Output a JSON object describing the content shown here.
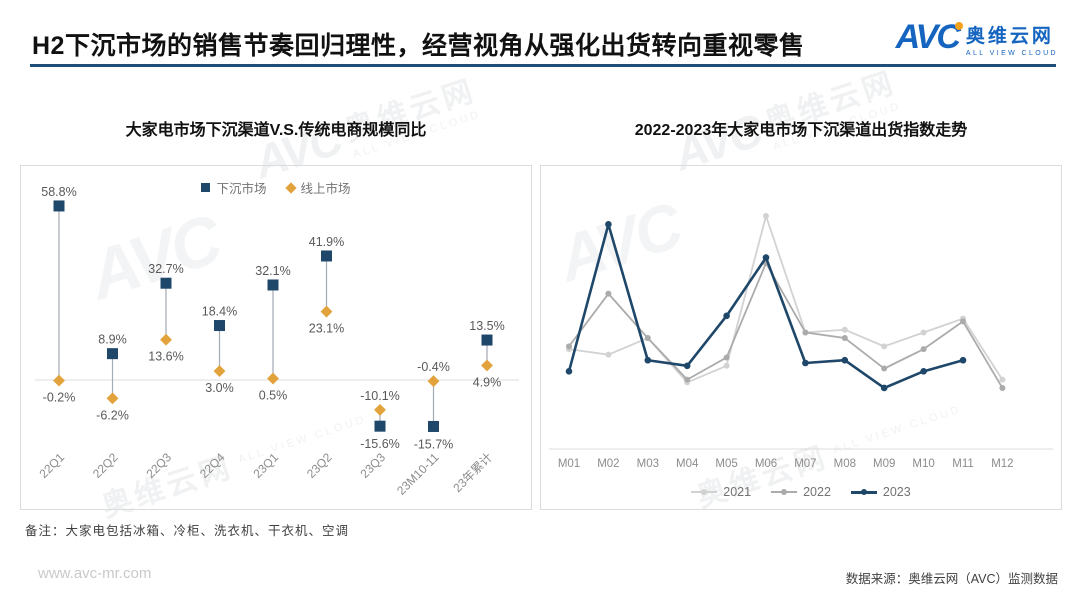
{
  "header": {
    "title": "H2下沉市场的销售节奏回归理性，经营视角从强化出货转向重视零售",
    "logo": {
      "text": "AVC",
      "name_cn": "奥维云网",
      "name_en": "ALL VIEW CLOUD"
    }
  },
  "watermark": {
    "avc": "AVC",
    "cn": "奥维云网",
    "en": "ALL VIEW CLOUD"
  },
  "chart_data": [
    {
      "type": "scatter",
      "subtype": "lollipop-stem",
      "title": "大家电市场下沉渠道V.S.传统电商规模同比",
      "unit": "%",
      "categories": [
        "22Q1",
        "22Q2",
        "22Q3",
        "22Q4",
        "23Q1",
        "23Q2",
        "23Q3",
        "23M10-11",
        "23年累计"
      ],
      "series": [
        {
          "name": "下沉市场",
          "marker": "square",
          "color": "#1f4769",
          "values": [
            58.8,
            8.9,
            32.7,
            18.4,
            32.1,
            41.9,
            -15.6,
            -15.7,
            13.5
          ]
        },
        {
          "name": "线上市场",
          "marker": "diamond",
          "color": "#e2a23c",
          "values": [
            -0.2,
            -6.2,
            13.6,
            3.0,
            0.5,
            23.1,
            -10.1,
            -0.4,
            4.9
          ]
        }
      ],
      "axis": {
        "y_ticks_visible": false,
        "zero_line": true,
        "ylim": [
          -25,
          70
        ]
      },
      "legend_position": "top-center"
    },
    {
      "type": "line",
      "title": "2022-2023年大家电市场下沉渠道出货指数走势",
      "x": [
        "M01",
        "M02",
        "M03",
        "M04",
        "M05",
        "M06",
        "M07",
        "M08",
        "M09",
        "M10",
        "M11",
        "M12"
      ],
      "series": [
        {
          "name": "2021",
          "color": "#d2d2d2",
          "values": [
            36,
            34,
            40,
            24,
            30,
            84,
            42,
            43,
            37,
            42,
            47,
            25
          ]
        },
        {
          "name": "2022",
          "color": "#ababab",
          "values": [
            37,
            56,
            40,
            25,
            33,
            67,
            42,
            40,
            29,
            36,
            46,
            22
          ]
        },
        {
          "name": "2023",
          "color": "#1f4769",
          "values": [
            28,
            81,
            32,
            30,
            48,
            69,
            31,
            32,
            22,
            28,
            32,
            null
          ]
        }
      ],
      "axis": {
        "y_ticks_visible": false,
        "values_are_estimated_index": true,
        "ylim": [
          0,
          100
        ]
      },
      "legend_position": "bottom-center"
    }
  ],
  "note": "备注：大家电包括冰箱、冷柜、洗衣机、干衣机、空调",
  "footer": {
    "url": "www.avc-mr.com",
    "source": "数据来源：奥维云网（AVC）监测数据"
  },
  "colors": {
    "header_line": "#1f4e79",
    "logo_blue": "#1565c0",
    "logo_orange": "#f5a21b",
    "stem": "#a3abb3",
    "axis": "#dcdcdc",
    "label_gray": "#595959",
    "tick_gray": "#8c8c8c"
  }
}
